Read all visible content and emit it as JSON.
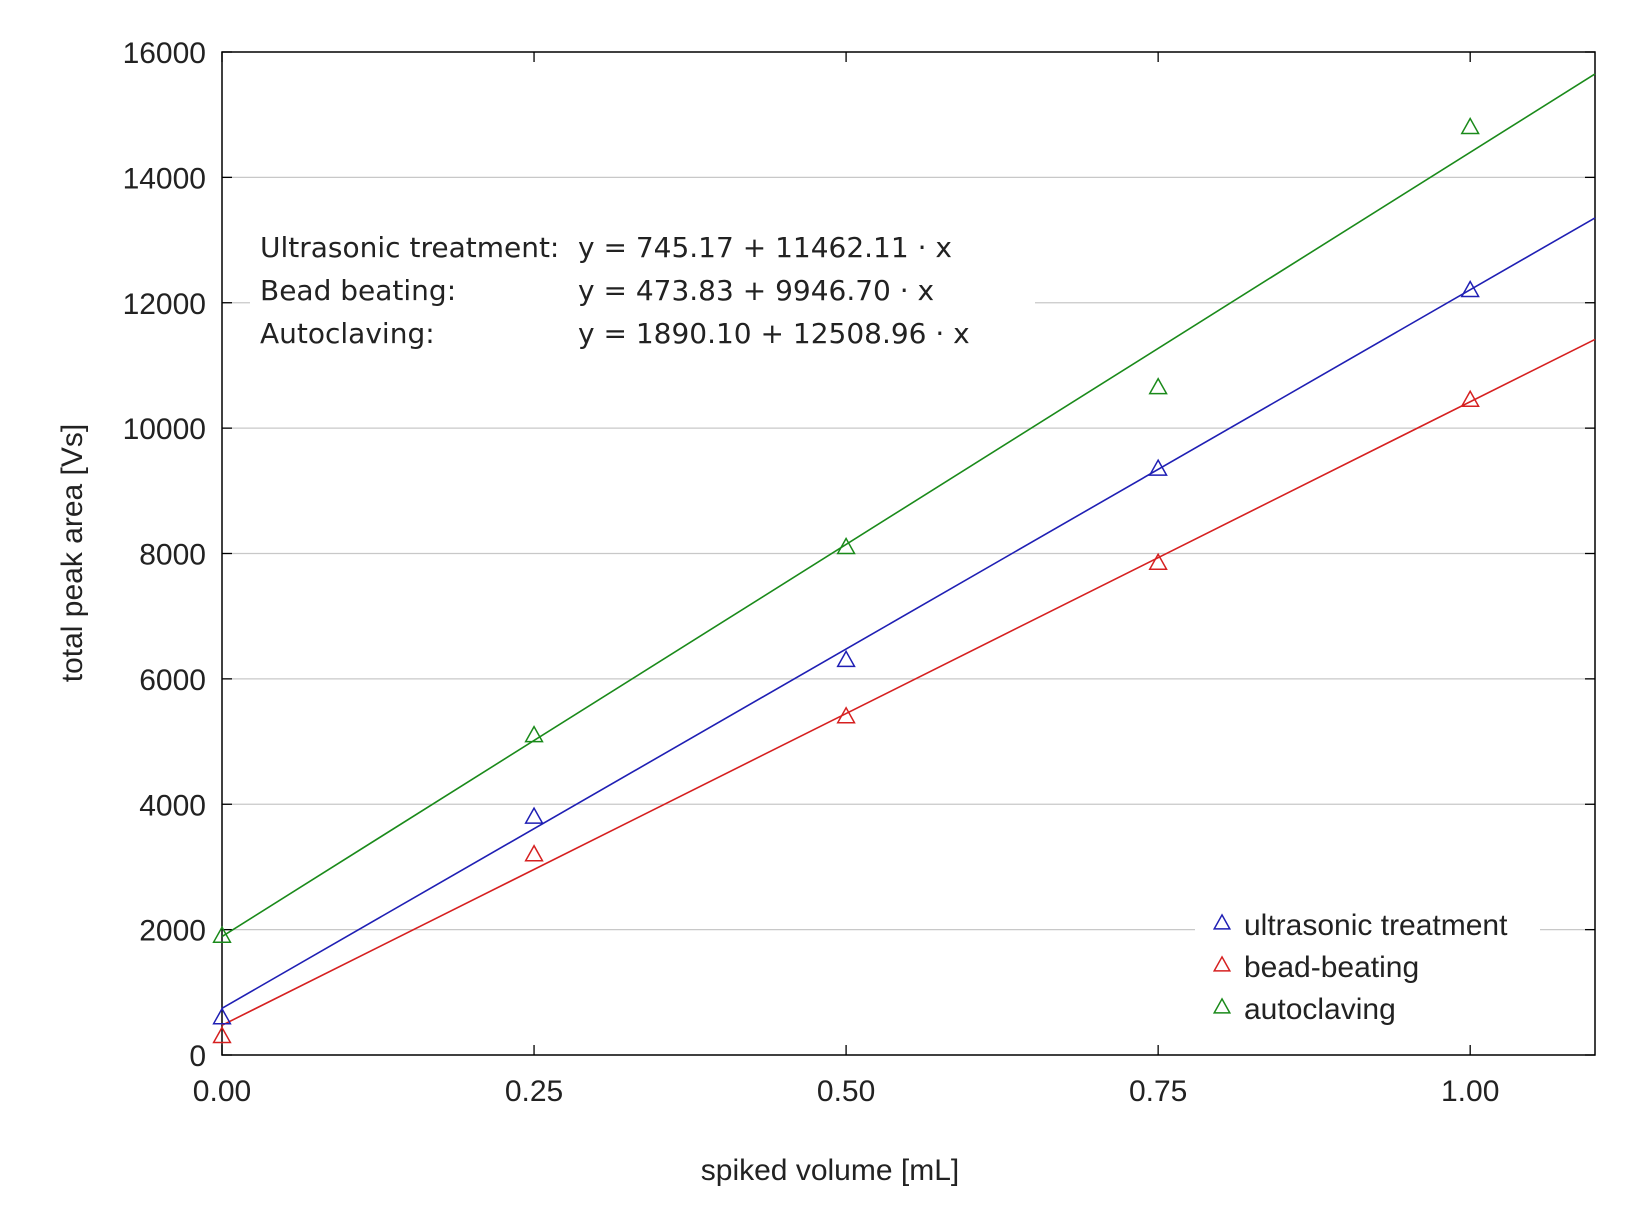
{
  "chart_data": {
    "type": "scatter",
    "xlabel": "spiked volume [mL]",
    "ylabel": "total peak area [Vs]",
    "xlim": [
      0,
      1.1
    ],
    "ylim": [
      0,
      16000
    ],
    "x_ticks": [
      0,
      0.25,
      0.5,
      0.75,
      1.0
    ],
    "x_tick_labels": [
      "0.00",
      "0.25",
      "0.50",
      "0.75",
      "1.00"
    ],
    "y_ticks": [
      0,
      2000,
      4000,
      6000,
      8000,
      10000,
      12000,
      14000,
      16000
    ],
    "y_tick_labels": [
      "0",
      "2000",
      "4000",
      "6000",
      "8000",
      "10000",
      "12000",
      "14000",
      "16000"
    ],
    "grid": "horizontal",
    "legend_position": "bottom-right",
    "marker": "open-triangle",
    "series": [
      {
        "name": "ultrasonic treatment",
        "color": "#1f1fb4",
        "x": [
          0,
          0.25,
          0.5,
          0.75,
          1.0
        ],
        "y": [
          600,
          3800,
          6300,
          9350,
          12200
        ],
        "fit": {
          "intercept": 745.17,
          "slope": 11462.11
        }
      },
      {
        "name": "bead-beating",
        "color": "#d62020",
        "x": [
          0,
          0.25,
          0.5,
          0.75,
          1.0
        ],
        "y": [
          300,
          3200,
          5400,
          7850,
          10450
        ],
        "fit": {
          "intercept": 473.83,
          "slope": 9946.7
        }
      },
      {
        "name": "autoclaving",
        "color": "#1a8a1a",
        "x": [
          0,
          0.25,
          0.5,
          0.75,
          1.0
        ],
        "y": [
          1900,
          5100,
          8100,
          10650,
          14800
        ],
        "fit": {
          "intercept": 1890.1,
          "slope": 12508.96
        }
      }
    ],
    "annotations": [
      {
        "label": "Ultrasonic treatment:",
        "equation": "y = 745.17 + 11462.11 · x"
      },
      {
        "label": "Bead beating:",
        "equation": "y = 473.83 + 9946.70 · x"
      },
      {
        "label": "Autoclaving:",
        "equation": "y = 1890.10 + 12508.96 · x"
      }
    ]
  }
}
